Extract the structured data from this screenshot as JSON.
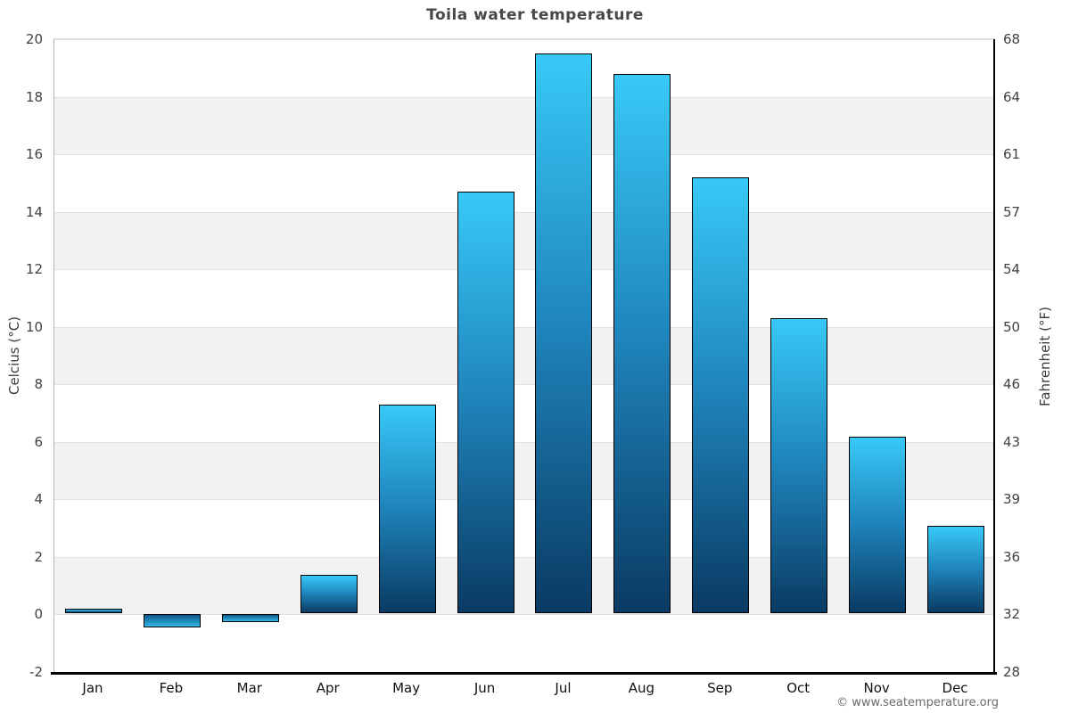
{
  "title": "Toila water temperature",
  "footer_credit": "© www.seatemperature.org",
  "chart_data": {
    "type": "bar",
    "title": "Toila water temperature",
    "categories": [
      "Jan",
      "Feb",
      "Mar",
      "Apr",
      "May",
      "Jun",
      "Jul",
      "Aug",
      "Sep",
      "Oct",
      "Nov",
      "Dec"
    ],
    "values": [
      0.1,
      -0.4,
      -0.2,
      1.3,
      7.2,
      14.6,
      19.4,
      18.7,
      15.1,
      10.2,
      6.1,
      3.0
    ],
    "series_name": "Water temperature",
    "xlabel": "",
    "ylabel_left": "Celcius (°C)",
    "ylabel_right": "Fahrenheit (°F)",
    "ylim": [
      -2,
      20
    ],
    "yticks_celsius": [
      20,
      18,
      16,
      14,
      12,
      10,
      8,
      6,
      4,
      2,
      0,
      -2
    ],
    "yticks_fahrenheit": [
      68,
      64,
      61,
      57,
      54,
      50,
      46,
      43,
      39,
      36,
      32,
      28
    ],
    "grid": "alternating horizontal bands every 2°C",
    "legend": "none",
    "colors": {
      "bar_gradient_top": "#38c9f7",
      "bar_gradient_mid": "#1f86bd",
      "bar_gradient_bottom": "#0a3a63",
      "bar_outline": "#000000",
      "band_light": "#ffffff",
      "band_gray": "#f2f2f2",
      "gridline": "#e2e2e2",
      "title_text": "#484848",
      "tick_text": "#424242",
      "month_text": "#111111",
      "footer_text": "#6b6b6b"
    }
  }
}
